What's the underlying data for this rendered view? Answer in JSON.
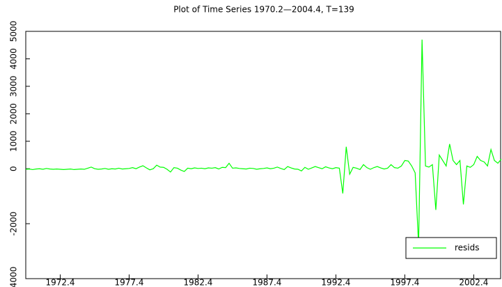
{
  "chart_data": {
    "type": "line",
    "title": "Plot of Time Series 1970.2—2004.4, T=139",
    "x": [
      1970.25,
      1970.5,
      1970.75,
      1971,
      1971.25,
      1971.5,
      1971.75,
      1972,
      1972.25,
      1972.5,
      1972.75,
      1973,
      1973.25,
      1973.5,
      1973.75,
      1974,
      1974.25,
      1974.5,
      1974.75,
      1975,
      1975.25,
      1975.5,
      1975.75,
      1976,
      1976.25,
      1976.5,
      1976.75,
      1977,
      1977.25,
      1977.5,
      1977.75,
      1978,
      1978.25,
      1978.5,
      1978.75,
      1979,
      1979.25,
      1979.5,
      1979.75,
      1980,
      1980.25,
      1980.5,
      1980.75,
      1981,
      1981.25,
      1981.5,
      1981.75,
      1982,
      1982.25,
      1982.5,
      1982.75,
      1983,
      1983.25,
      1983.5,
      1983.75,
      1984,
      1984.25,
      1984.5,
      1984.75,
      1985,
      1985.25,
      1985.5,
      1985.75,
      1986,
      1986.25,
      1986.5,
      1986.75,
      1987,
      1987.25,
      1987.5,
      1987.75,
      1988,
      1988.25,
      1988.5,
      1988.75,
      1989,
      1989.25,
      1989.5,
      1989.75,
      1990,
      1990.25,
      1990.5,
      1990.75,
      1991,
      1991.25,
      1991.5,
      1991.75,
      1992,
      1992.25,
      1992.5,
      1992.75,
      1993,
      1993.25,
      1993.5,
      1993.75,
      1994,
      1994.25,
      1994.5,
      1994.75,
      1995,
      1995.25,
      1995.5,
      1995.75,
      1996,
      1996.25,
      1996.5,
      1996.75,
      1997,
      1997.25,
      1997.5,
      1997.75,
      1998,
      1998.25,
      1998.5,
      1998.75,
      1999,
      1999.25,
      1999.5,
      1999.75,
      2000,
      2000.25,
      2000.5,
      2000.75,
      2001,
      2001.25,
      2001.5,
      2001.75,
      2002,
      2002.25,
      2002.5,
      2002.75,
      2003,
      2003.25,
      2003.5,
      2003.75,
      2004,
      2004.25,
      2004.5,
      2004.75
    ],
    "series": [
      {
        "name": "resids",
        "color": "#00ff00",
        "values": [
          -20,
          -10,
          -30,
          -10,
          0,
          -20,
          10,
          -10,
          -20,
          -10,
          -20,
          -30,
          -20,
          -10,
          -30,
          -20,
          -10,
          -20,
          20,
          60,
          0,
          -20,
          -10,
          10,
          -20,
          0,
          -10,
          20,
          -10,
          0,
          10,
          40,
          0,
          60,
          110,
          30,
          -40,
          0,
          130,
          60,
          50,
          -20,
          -120,
          40,
          20,
          -50,
          -100,
          20,
          0,
          30,
          10,
          20,
          0,
          30,
          20,
          40,
          -10,
          50,
          40,
          200,
          20,
          30,
          10,
          0,
          -10,
          20,
          10,
          -20,
          0,
          10,
          30,
          0,
          20,
          60,
          10,
          -30,
          80,
          30,
          -10,
          -20,
          -80,
          50,
          -20,
          30,
          80,
          40,
          0,
          70,
          30,
          0,
          40,
          20,
          -900,
          800,
          -200,
          50,
          20,
          -30,
          150,
          40,
          -20,
          40,
          80,
          30,
          -10,
          20,
          150,
          40,
          20,
          100,
          300,
          280,
          100,
          -150,
          -2800,
          4700,
          100,
          60,
          150,
          -1500,
          500,
          300,
          100,
          900,
          300,
          150,
          300,
          -1300,
          100,
          50,
          150,
          450,
          300,
          250,
          100,
          700,
          300,
          200,
          350
        ]
      }
    ],
    "xlim": [
      1970.25,
      2004.75
    ],
    "xticks": [
      {
        "value": 1972.75,
        "label": "1972.4"
      },
      {
        "value": 1977.75,
        "label": "1977.4"
      },
      {
        "value": 1982.75,
        "label": "1982.4"
      },
      {
        "value": 1987.75,
        "label": "1987.4"
      },
      {
        "value": 1992.75,
        "label": "1992.4"
      },
      {
        "value": 1997.75,
        "label": "1997.4"
      },
      {
        "value": 2002.75,
        "label": "2002.4"
      }
    ],
    "ylim": [
      -4000,
      5000
    ],
    "yticks": [
      -4000,
      -2000,
      0,
      1000,
      2000,
      3000,
      4000,
      5000
    ],
    "legend": "lower right"
  }
}
